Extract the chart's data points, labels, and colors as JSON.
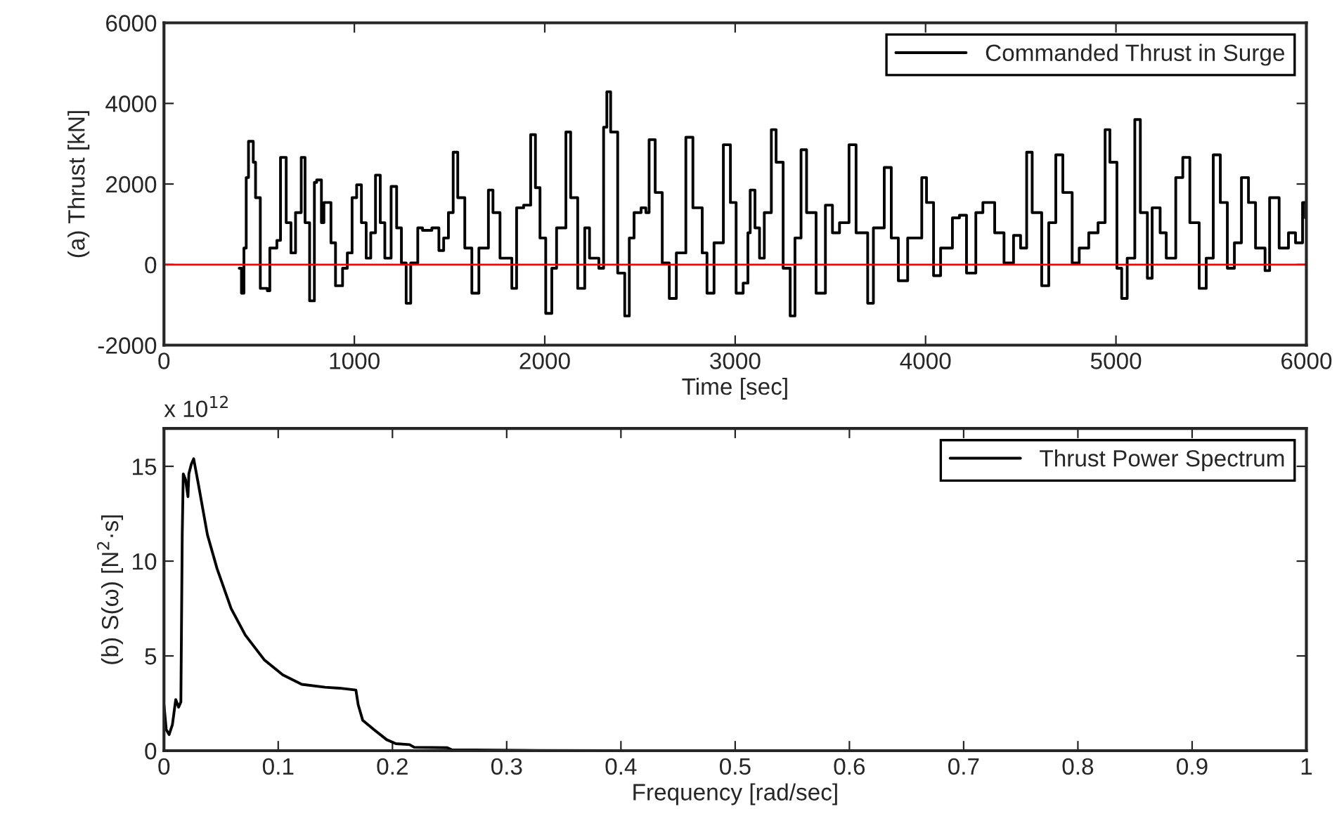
{
  "chart_data": [
    {
      "type": "step",
      "xlabel": "Time [sec]",
      "ylabel": "(a) Thrust [kN]",
      "xlim": [
        0,
        6000
      ],
      "xticks": [
        0,
        1000,
        2000,
        3000,
        4000,
        5000,
        6000
      ],
      "ylim": [
        -2000,
        6000
      ],
      "yticks": [
        {
          "value": -2000,
          "label": "-2000"
        },
        0,
        2000,
        4000,
        6000
      ],
      "legend": "top right",
      "grid": false,
      "ref_lines": [
        {
          "axis": "y",
          "value": 0,
          "color": "#ff0000"
        }
      ],
      "series": [
        {
          "name": "Commanded Thrust in Surge",
          "color": "#000000",
          "x": [
            395,
            407,
            420,
            432,
            444,
            469,
            481,
            506,
            543,
            556,
            593,
            612,
            642,
            667,
            691,
            721,
            741,
            765,
            790,
            802,
            827,
            840,
            877,
            901,
            938,
            963,
            988,
            1012,
            1037,
            1062,
            1086,
            1111,
            1136,
            1160,
            1193,
            1222,
            1247,
            1272,
            1296,
            1333,
            1358,
            1407,
            1444,
            1469,
            1494,
            1519,
            1543,
            1580,
            1617,
            1654,
            1704,
            1728,
            1765,
            1827,
            1852,
            1889,
            1926,
            1951,
            1975,
            2005,
            2037,
            2062,
            2111,
            2136,
            2173,
            2210,
            2235,
            2284,
            2309,
            2326,
            2346,
            2383,
            2420,
            2444,
            2469,
            2506,
            2531,
            2548,
            2580,
            2617,
            2654,
            2691,
            2741,
            2778,
            2827,
            2852,
            2889,
            2938,
            2975,
            3005,
            3042,
            3067,
            3079,
            3104,
            3128,
            3153,
            3190,
            3215,
            3252,
            3289,
            3314,
            3346,
            3375,
            3425,
            3474,
            3511,
            3548,
            3598,
            3635,
            3696,
            3726,
            3783,
            3820,
            3857,
            3906,
            3980,
            4005,
            4042,
            4079,
            4141,
            4178,
            4215,
            4264,
            4301,
            4363,
            4412,
            4462,
            4499,
            4531,
            4560,
            4610,
            4647,
            4684,
            4721,
            4770,
            4807,
            4857,
            4906,
            4943,
            4968,
            5005,
            5030,
            5059,
            5099,
            5128,
            5165,
            5190,
            5232,
            5264,
            5314,
            5351,
            5388,
            5437,
            5474,
            5511,
            5548,
            5585,
            5622,
            5659,
            5696,
            5733,
            5783,
            5807,
            5857,
            5906,
            5943,
            5980,
            5995
          ],
          "values": [
            -90,
            -710,
            410,
            2160,
            3060,
            2540,
            1660,
            -590,
            -650,
            410,
            600,
            2660,
            1040,
            290,
            1290,
            2660,
            1040,
            -900,
            2040,
            2100,
            1040,
            1540,
            540,
            -525,
            -90,
            290,
            1660,
            1980,
            1040,
            160,
            790,
            2220,
            1040,
            160,
            1940,
            910,
            40,
            -960,
            40,
            910,
            850,
            910,
            350,
            660,
            1290,
            2790,
            1660,
            410,
            -710,
            410,
            1850,
            1290,
            160,
            -590,
            1410,
            1475,
            3225,
            1910,
            660,
            -1210,
            -90,
            910,
            3290,
            1660,
            -590,
            910,
            160,
            -90,
            3410,
            4290,
            3290,
            -210,
            -1275,
            660,
            1290,
            1410,
            1290,
            3100,
            1790,
            40,
            -840,
            290,
            3160,
            1410,
            290,
            -710,
            540,
            2975,
            1540,
            -710,
            -460,
            790,
            1850,
            910,
            160,
            1290,
            3350,
            2540,
            -90,
            -1275,
            660,
            2850,
            1290,
            -710,
            1475,
            790,
            1040,
            2975,
            790,
            -960,
            910,
            2410,
            660,
            -400,
            660,
            2160,
            1540,
            -275,
            410,
            1160,
            1225,
            -210,
            1290,
            1540,
            790,
            40,
            725,
            410,
            2790,
            1290,
            -525,
            1040,
            2725,
            1790,
            40,
            410,
            790,
            1040,
            3350,
            2540,
            -90,
            -840,
            160,
            3600,
            1290,
            -340,
            1410,
            790,
            160,
            2160,
            2660,
            1040,
            -590,
            160,
            2725,
            1540,
            -90,
            540,
            2160,
            1540,
            410,
            -150,
            1660,
            410,
            790,
            540,
            1540,
            1160
          ]
        }
      ]
    },
    {
      "type": "line",
      "xlabel": "Frequency [rad/sec]",
      "ylabel": "(b) S(ω) [N$^{2}$·s]",
      "xlim": [
        0,
        1
      ],
      "xticks": [
        0,
        0.1,
        0.2,
        0.3,
        0.4,
        0.5,
        0.6,
        0.7,
        0.8,
        0.9,
        1
      ],
      "ylim": [
        0,
        17
      ],
      "yticks": [
        0,
        5,
        10,
        15
      ],
      "legend": "top right",
      "grid": false,
      "annotations": [
        "x 10$^{12}$"
      ],
      "series": [
        {
          "name": "Thrust Power Spectrum",
          "color": "#000000",
          "x": [
            0,
            0.002,
            0.0045,
            0.0074,
            0.0103,
            0.0128,
            0.0148,
            0.016,
            0.0169,
            0.0189,
            0.021,
            0.0218,
            0.0239,
            0.026,
            0.03,
            0.038,
            0.0465,
            0.0588,
            0.0712,
            0.0877,
            0.104,
            0.1206,
            0.141,
            0.1535,
            0.168,
            0.17,
            0.174,
            0.184,
            0.195,
            0.203,
            0.215,
            0.219,
            0.248,
            0.252,
            0.31,
            0.4,
            0.6,
            0.8,
            1
          ],
          "values": [
            2.43,
            1.11,
            0.85,
            1.38,
            2.7,
            2.3,
            2.57,
            11.4,
            14.6,
            14.3,
            13.4,
            14.6,
            15.1,
            15.4,
            14.1,
            11.4,
            9.6,
            7.5,
            6.1,
            4.8,
            4.0,
            3.5,
            3.35,
            3.3,
            3.2,
            2.43,
            1.6,
            1.1,
            0.58,
            0.37,
            0.32,
            0.18,
            0.16,
            0.05,
            0.02,
            0,
            0,
            0,
            0
          ]
        }
      ]
    }
  ]
}
